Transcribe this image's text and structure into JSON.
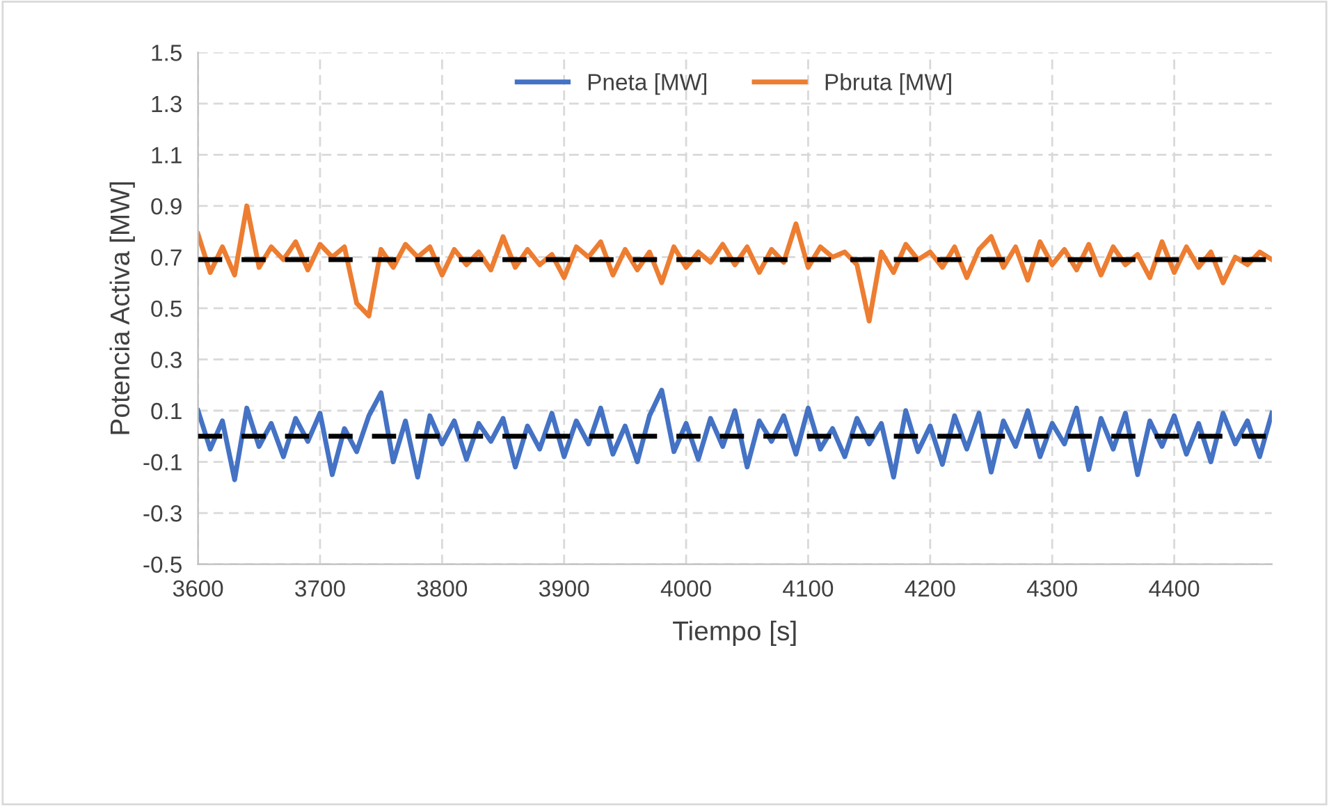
{
  "chart_data": {
    "type": "line",
    "xlabel": "Tiempo [s]",
    "ylabel": "Potencia Activa [MW]",
    "x": [
      3600,
      3610,
      3620,
      3630,
      3640,
      3650,
      3660,
      3670,
      3680,
      3690,
      3700,
      3710,
      3720,
      3730,
      3740,
      3750,
      3760,
      3770,
      3780,
      3790,
      3800,
      3810,
      3820,
      3830,
      3840,
      3850,
      3860,
      3870,
      3880,
      3890,
      3900,
      3910,
      3920,
      3930,
      3940,
      3950,
      3960,
      3970,
      3980,
      3990,
      4000,
      4010,
      4020,
      4030,
      4040,
      4050,
      4060,
      4070,
      4080,
      4090,
      4100,
      4110,
      4120,
      4130,
      4140,
      4150,
      4160,
      4170,
      4180,
      4190,
      4200,
      4210,
      4220,
      4230,
      4240,
      4250,
      4260,
      4270,
      4280,
      4290,
      4300,
      4310,
      4320,
      4330,
      4340,
      4350,
      4360,
      4370,
      4380,
      4390,
      4400,
      4410,
      4420,
      4430,
      4440,
      4450,
      4460,
      4470,
      4480
    ],
    "series": [
      {
        "name": "Pneta [MW]",
        "color": "#4472c4",
        "values": [
          0.1,
          -0.05,
          0.06,
          -0.17,
          0.11,
          -0.04,
          0.05,
          -0.08,
          0.07,
          -0.02,
          0.09,
          -0.15,
          0.03,
          -0.06,
          0.08,
          0.17,
          -0.1,
          0.06,
          -0.16,
          0.08,
          -0.03,
          0.06,
          -0.09,
          0.05,
          -0.02,
          0.07,
          -0.12,
          0.04,
          -0.05,
          0.09,
          -0.08,
          0.06,
          -0.03,
          0.11,
          -0.07,
          0.04,
          -0.1,
          0.08,
          0.18,
          -0.06,
          0.05,
          -0.09,
          0.07,
          -0.04,
          0.1,
          -0.12,
          0.06,
          -0.02,
          0.08,
          -0.07,
          0.11,
          -0.05,
          0.03,
          -0.08,
          0.07,
          -0.03,
          0.05,
          -0.16,
          0.1,
          -0.06,
          0.04,
          -0.11,
          0.08,
          -0.05,
          0.09,
          -0.14,
          0.06,
          -0.04,
          0.1,
          -0.08,
          0.05,
          -0.03,
          0.11,
          -0.13,
          0.07,
          -0.05,
          0.09,
          -0.15,
          0.06,
          -0.04,
          0.08,
          -0.07,
          0.05,
          -0.1,
          0.09,
          -0.03,
          0.06,
          -0.08,
          0.09
        ]
      },
      {
        "name": "Pbruta [MW]",
        "color": "#ed7d31",
        "values": [
          0.79,
          0.64,
          0.74,
          0.63,
          0.9,
          0.66,
          0.74,
          0.69,
          0.76,
          0.65,
          0.75,
          0.7,
          0.74,
          0.52,
          0.47,
          0.73,
          0.66,
          0.75,
          0.7,
          0.74,
          0.63,
          0.73,
          0.67,
          0.72,
          0.65,
          0.78,
          0.66,
          0.73,
          0.67,
          0.71,
          0.62,
          0.74,
          0.7,
          0.76,
          0.63,
          0.73,
          0.65,
          0.72,
          0.6,
          0.74,
          0.66,
          0.72,
          0.68,
          0.75,
          0.67,
          0.74,
          0.64,
          0.73,
          0.68,
          0.83,
          0.66,
          0.74,
          0.7,
          0.72,
          0.67,
          0.45,
          0.72,
          0.64,
          0.75,
          0.69,
          0.72,
          0.66,
          0.74,
          0.62,
          0.73,
          0.78,
          0.66,
          0.74,
          0.61,
          0.76,
          0.67,
          0.73,
          0.65,
          0.75,
          0.63,
          0.74,
          0.67,
          0.71,
          0.62,
          0.76,
          0.64,
          0.74,
          0.66,
          0.72,
          0.6,
          0.7,
          0.67,
          0.72,
          0.69
        ]
      }
    ],
    "ref_lines": [
      {
        "axis": "y",
        "value": 0.69,
        "color": "#000000",
        "line_style": "dashed"
      },
      {
        "axis": "y",
        "value": 0,
        "color": "#000000",
        "line_style": "dashed"
      }
    ],
    "xlim": [
      3600,
      4480
    ],
    "xticks": [
      3600,
      3700,
      3800,
      3900,
      4000,
      4100,
      4200,
      4300,
      4400
    ],
    "ylim": [
      -0.5,
      1.5
    ],
    "yticks": [
      -0.5,
      -0.3,
      -0.1,
      0.1,
      0.3,
      0.5,
      0.7,
      0.9,
      1.1,
      1.3,
      1.5
    ],
    "grid": true,
    "legend": "top",
    "marker": "none",
    "line_style": "solid"
  }
}
